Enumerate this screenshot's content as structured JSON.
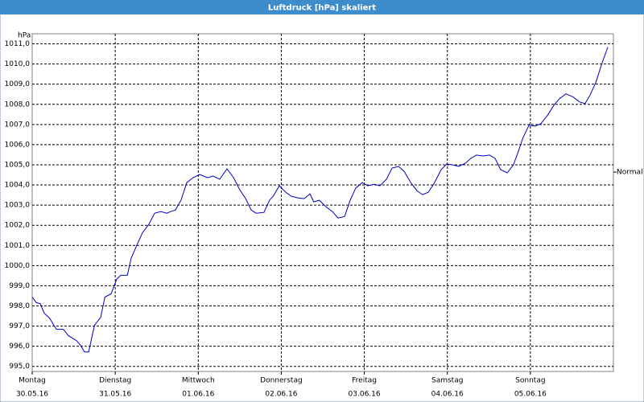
{
  "chart_data": {
    "type": "line",
    "title": "Luftdruck [hPa] skaliert",
    "y_unit": "hPa",
    "x": [
      0,
      1.2,
      2.3,
      3.5,
      5,
      7,
      9,
      10.5,
      12.8,
      14,
      15.1,
      16.3,
      18,
      19.8,
      21,
      22.8,
      24.4,
      25.6,
      27.5,
      28.6,
      30.2,
      31.9,
      33.7,
      35.4,
      37.2,
      38.9,
      40,
      41.4,
      43,
      44.7,
      46.5,
      48.4,
      50.7,
      52.3,
      54.2,
      56.3,
      58.2,
      60,
      61.7,
      63.3,
      64.7,
      67,
      68.6,
      69.8,
      71.4,
      73.3,
      74.9,
      76.8,
      78.6,
      80.3,
      81.4,
      83,
      84.9,
      86.8,
      88.4,
      90.3,
      91.9,
      93.5,
      95.4,
      97,
      98.9,
      100.5,
      102.4,
      104,
      105.9,
      107.5,
      109.4,
      111.2,
      112.8,
      114.5,
      116.3,
      118.2,
      119.8,
      121.5,
      123.3,
      125.2,
      126.8,
      128.4,
      130.3,
      132.2,
      133.8,
      135.4,
      137.3,
      139.1,
      140.3,
      141.9,
      143.6,
      145.4,
      147,
      148.9,
      150.8,
      152.4,
      154.3,
      156.4,
      158.2,
      159.8,
      161.2,
      162.9,
      164.7,
      166.4
    ],
    "series": [
      {
        "name": "Luftdruck",
        "color": "#0000c0",
        "values": [
          998.44,
          998.16,
          998.12,
          997.64,
          997.4,
          996.84,
          996.84,
          996.52,
          996.28,
          996.04,
          995.72,
          995.72,
          997.04,
          997.44,
          998.44,
          998.6,
          999.32,
          999.52,
          999.52,
          1000.36,
          1001.0,
          1001.64,
          1002.04,
          1002.6,
          1002.68,
          1002.6,
          1002.68,
          1002.76,
          1003.24,
          1004.12,
          1004.36,
          1004.52,
          1004.36,
          1004.44,
          1004.28,
          1004.8,
          1004.36,
          1003.76,
          1003.32,
          1002.76,
          1002.6,
          1002.64,
          1003.24,
          1003.48,
          1003.96,
          1003.64,
          1003.44,
          1003.36,
          1003.32,
          1003.56,
          1003.16,
          1003.24,
          1002.92,
          1002.68,
          1002.36,
          1002.44,
          1003.24,
          1003.84,
          1004.12,
          1003.96,
          1004.04,
          1003.96,
          1004.28,
          1004.84,
          1004.92,
          1004.68,
          1004.12,
          1003.72,
          1003.52,
          1003.64,
          1004.12,
          1004.76,
          1005.04,
          1005.0,
          1004.92,
          1005.08,
          1005.32,
          1005.48,
          1005.44,
          1005.48,
          1005.32,
          1004.76,
          1004.6,
          1005.0,
          1005.56,
          1006.36,
          1006.96,
          1006.92,
          1007.04,
          1007.44,
          1007.96,
          1008.28,
          1008.52,
          1008.36,
          1008.12,
          1008.04,
          1008.44,
          1009.08,
          1010.04,
          1010.84
        ]
      }
    ],
    "xlim": [
      0,
      168
    ],
    "xticks": [
      {
        "value": 0,
        "label": "Montag"
      },
      {
        "value": 24,
        "label": "Dienstag"
      },
      {
        "value": 48,
        "label": "Mittwoch"
      },
      {
        "value": 72,
        "label": "Donnerstag"
      },
      {
        "value": 96,
        "label": "Freitag"
      },
      {
        "value": 120,
        "label": "Samstag"
      },
      {
        "value": 144,
        "label": "Sonntag"
      }
    ],
    "xtick_dates": [
      "30.05.16",
      "31.05.16",
      "01.06.16",
      "02.06.16",
      "03.06.16",
      "04.06.16",
      "05.06.16"
    ],
    "ylim": [
      994.75,
      1011.5
    ],
    "yticks": [
      {
        "value": 995,
        "label": "995,0"
      },
      {
        "value": 996,
        "label": "996,0"
      },
      {
        "value": 997,
        "label": "997,0"
      },
      {
        "value": 998,
        "label": "998,0"
      },
      {
        "value": 999,
        "label": "999,0"
      },
      {
        "value": 1000,
        "label": "1000,0"
      },
      {
        "value": 1001,
        "label": "1001,0"
      },
      {
        "value": 1002,
        "label": "1002,0"
      },
      {
        "value": 1003,
        "label": "1003,0"
      },
      {
        "value": 1004,
        "label": "1004,0"
      },
      {
        "value": 1005,
        "label": "1005,0"
      },
      {
        "value": 1006,
        "label": "1006,0"
      },
      {
        "value": 1007,
        "label": "1007,0"
      },
      {
        "value": 1008,
        "label": "1008,0"
      },
      {
        "value": 1009,
        "label": "1009,0"
      },
      {
        "value": 1010,
        "label": "1010,0"
      },
      {
        "value": 1011,
        "label": "1011,0"
      }
    ],
    "reference": {
      "label": "Normal",
      "value": 1004.64
    },
    "grid": true
  }
}
